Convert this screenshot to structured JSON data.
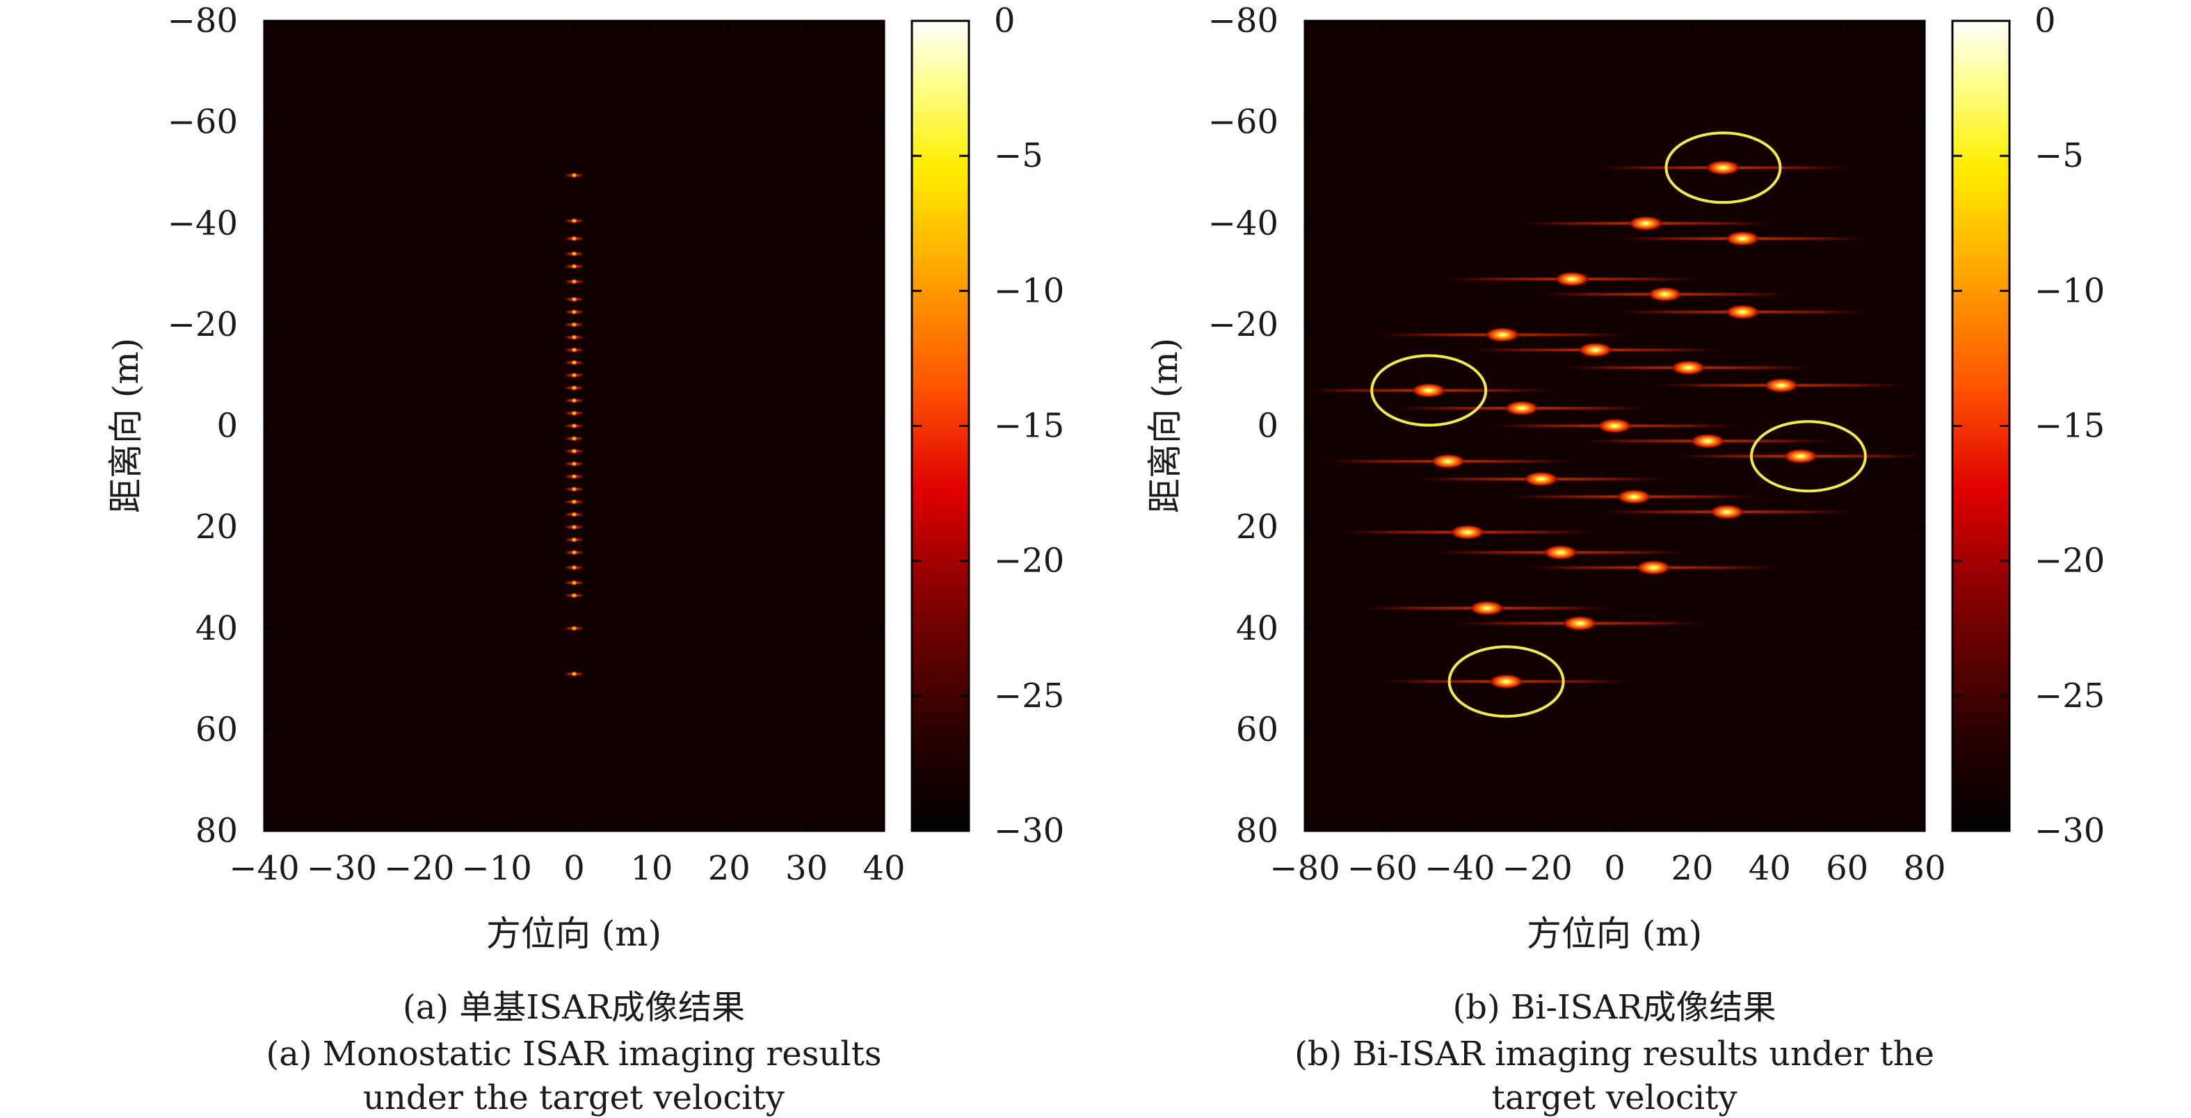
{
  "chart_data": [
    {
      "type": "heatmap",
      "panel": "a",
      "xlabel": "方位向 (m)",
      "ylabel": "距离向 (m)",
      "xlim": [
        -40,
        40
      ],
      "ylim": [
        -80,
        80
      ],
      "y_inverted": true,
      "xticks": [
        -40,
        -30,
        -20,
        -10,
        0,
        10,
        20,
        30,
        40
      ],
      "yticks": [
        -80,
        -60,
        -40,
        -20,
        0,
        20,
        40,
        60,
        80
      ],
      "colorbar": {
        "min": -30,
        "max": 0,
        "ticks": [
          0,
          -5,
          -10,
          -15,
          -20,
          -25,
          -30
        ],
        "colormap": "hot"
      },
      "caption_cn": "(a) 单基ISAR成像结果",
      "caption_en_line1": "(a) Monostatic ISAR imaging results",
      "caption_en_line2": "under the target velocity",
      "points": [
        {
          "x": 0,
          "y": -49.5
        },
        {
          "x": 0,
          "y": -40.5
        },
        {
          "x": 0,
          "y": -37
        },
        {
          "x": 0,
          "y": -34
        },
        {
          "x": 0,
          "y": -31.5
        },
        {
          "x": 0,
          "y": -28.5
        },
        {
          "x": 0,
          "y": -25
        },
        {
          "x": 0,
          "y": -22.5
        },
        {
          "x": 0,
          "y": -20
        },
        {
          "x": 0,
          "y": -17.5
        },
        {
          "x": 0,
          "y": -15
        },
        {
          "x": 0,
          "y": -12.5
        },
        {
          "x": 0,
          "y": -10
        },
        {
          "x": 0,
          "y": -7.5
        },
        {
          "x": 0,
          "y": -5
        },
        {
          "x": 0,
          "y": -2.5
        },
        {
          "x": 0,
          "y": 0
        },
        {
          "x": 0,
          "y": 2.5
        },
        {
          "x": 0,
          "y": 5
        },
        {
          "x": 0,
          "y": 7.5
        },
        {
          "x": 0,
          "y": 10
        },
        {
          "x": 0,
          "y": 12.5
        },
        {
          "x": 0,
          "y": 15
        },
        {
          "x": 0,
          "y": 17.5
        },
        {
          "x": 0,
          "y": 20
        },
        {
          "x": 0,
          "y": 22.5
        },
        {
          "x": 0,
          "y": 25
        },
        {
          "x": 0,
          "y": 28
        },
        {
          "x": 0,
          "y": 31
        },
        {
          "x": 0,
          "y": 33.5
        },
        {
          "x": 0,
          "y": 40
        },
        {
          "x": 0,
          "y": 49
        }
      ]
    },
    {
      "type": "heatmap",
      "panel": "b",
      "xlabel": "方位向 (m)",
      "ylabel": "距离向 (m)",
      "xlim": [
        -80,
        80
      ],
      "ylim": [
        -80,
        80
      ],
      "y_inverted": true,
      "xticks": [
        -80,
        -60,
        -40,
        -20,
        0,
        20,
        40,
        60,
        80
      ],
      "yticks": [
        -80,
        -60,
        -40,
        -20,
        0,
        20,
        40,
        60,
        80
      ],
      "colorbar": {
        "min": -30,
        "max": 0,
        "ticks": [
          0,
          -5,
          -10,
          -15,
          -20,
          -25,
          -30
        ],
        "colormap": "hot"
      },
      "caption_cn": "(b) Bi-ISAR成像结果",
      "caption_en_line1": "(b) Bi-ISAR imaging results under the",
      "caption_en_line2": "target velocity",
      "points": [
        {
          "x": 28,
          "y": -51
        },
        {
          "x": 8,
          "y": -40
        },
        {
          "x": 33,
          "y": -37
        },
        {
          "x": -11,
          "y": -29
        },
        {
          "x": 13,
          "y": -26
        },
        {
          "x": 33,
          "y": -22.5
        },
        {
          "x": -29,
          "y": -18
        },
        {
          "x": -5,
          "y": -15
        },
        {
          "x": 19,
          "y": -11.5
        },
        {
          "x": 43,
          "y": -8
        },
        {
          "x": -48,
          "y": -7
        },
        {
          "x": -24,
          "y": -3.5
        },
        {
          "x": 0,
          "y": 0
        },
        {
          "x": 24,
          "y": 3
        },
        {
          "x": -43,
          "y": 7
        },
        {
          "x": 48,
          "y": 6
        },
        {
          "x": -19,
          "y": 10.5
        },
        {
          "x": 5,
          "y": 14
        },
        {
          "x": 29,
          "y": 17
        },
        {
          "x": -38,
          "y": 21
        },
        {
          "x": -14,
          "y": 25
        },
        {
          "x": 10,
          "y": 28
        },
        {
          "x": -33,
          "y": 36
        },
        {
          "x": -9,
          "y": 39
        },
        {
          "x": -28,
          "y": 50.5
        }
      ],
      "highlights": [
        {
          "x": 28,
          "y": -51
        },
        {
          "x": -48,
          "y": -7
        },
        {
          "x": 50,
          "y": 6
        },
        {
          "x": -28,
          "y": 50.5
        }
      ]
    }
  ]
}
